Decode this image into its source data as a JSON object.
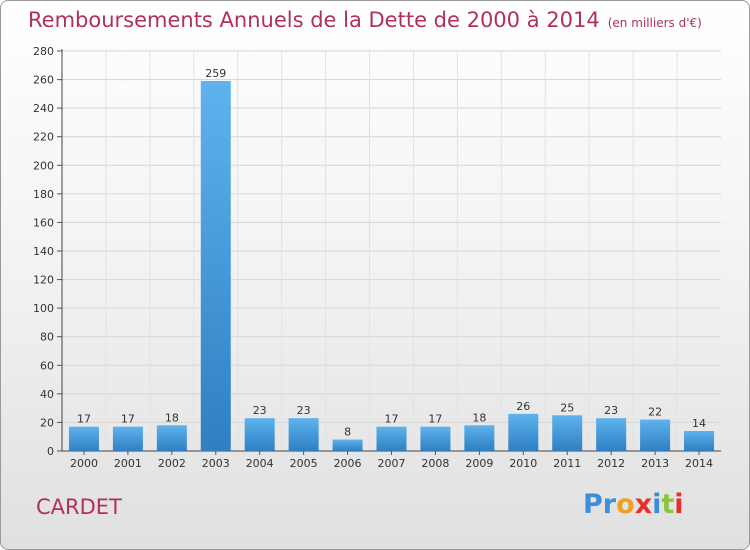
{
  "header": {
    "title": "Remboursements Annuels de la Dette de 2000 à 2014",
    "unit": "(en milliers d'€)"
  },
  "footer": {
    "town": "CARDET",
    "logo_letters": [
      "P",
      "r",
      "o",
      "x",
      "i",
      "t",
      "i"
    ],
    "logo_colors": [
      "#3a8fd6",
      "#3a8fd6",
      "#f0a020",
      "#e8302a",
      "#3a8fd6",
      "#8ac43f",
      "#e8302a"
    ]
  },
  "chart_data": {
    "type": "bar",
    "title": "Remboursements Annuels de la Dette de 2000 à 2014",
    "subtitle": "(en milliers d'€)",
    "categories": [
      "2000",
      "2001",
      "2002",
      "2003",
      "2004",
      "2005",
      "2006",
      "2007",
      "2008",
      "2009",
      "2010",
      "2011",
      "2012",
      "2013",
      "2014"
    ],
    "values": [
      17,
      17,
      18,
      259,
      23,
      23,
      8,
      17,
      17,
      18,
      26,
      25,
      23,
      22,
      14
    ],
    "data_labels": [
      "17",
      "17",
      "18",
      "259",
      "23",
      "23",
      "8",
      "17",
      "17",
      "18",
      "26",
      "25",
      "23",
      "22",
      "14"
    ],
    "yticks": [
      0,
      20,
      40,
      60,
      80,
      100,
      120,
      140,
      160,
      180,
      200,
      220,
      240,
      260,
      280
    ],
    "ylim": [
      0,
      280
    ],
    "grid": true,
    "bar_color": "#4a9fe0"
  }
}
